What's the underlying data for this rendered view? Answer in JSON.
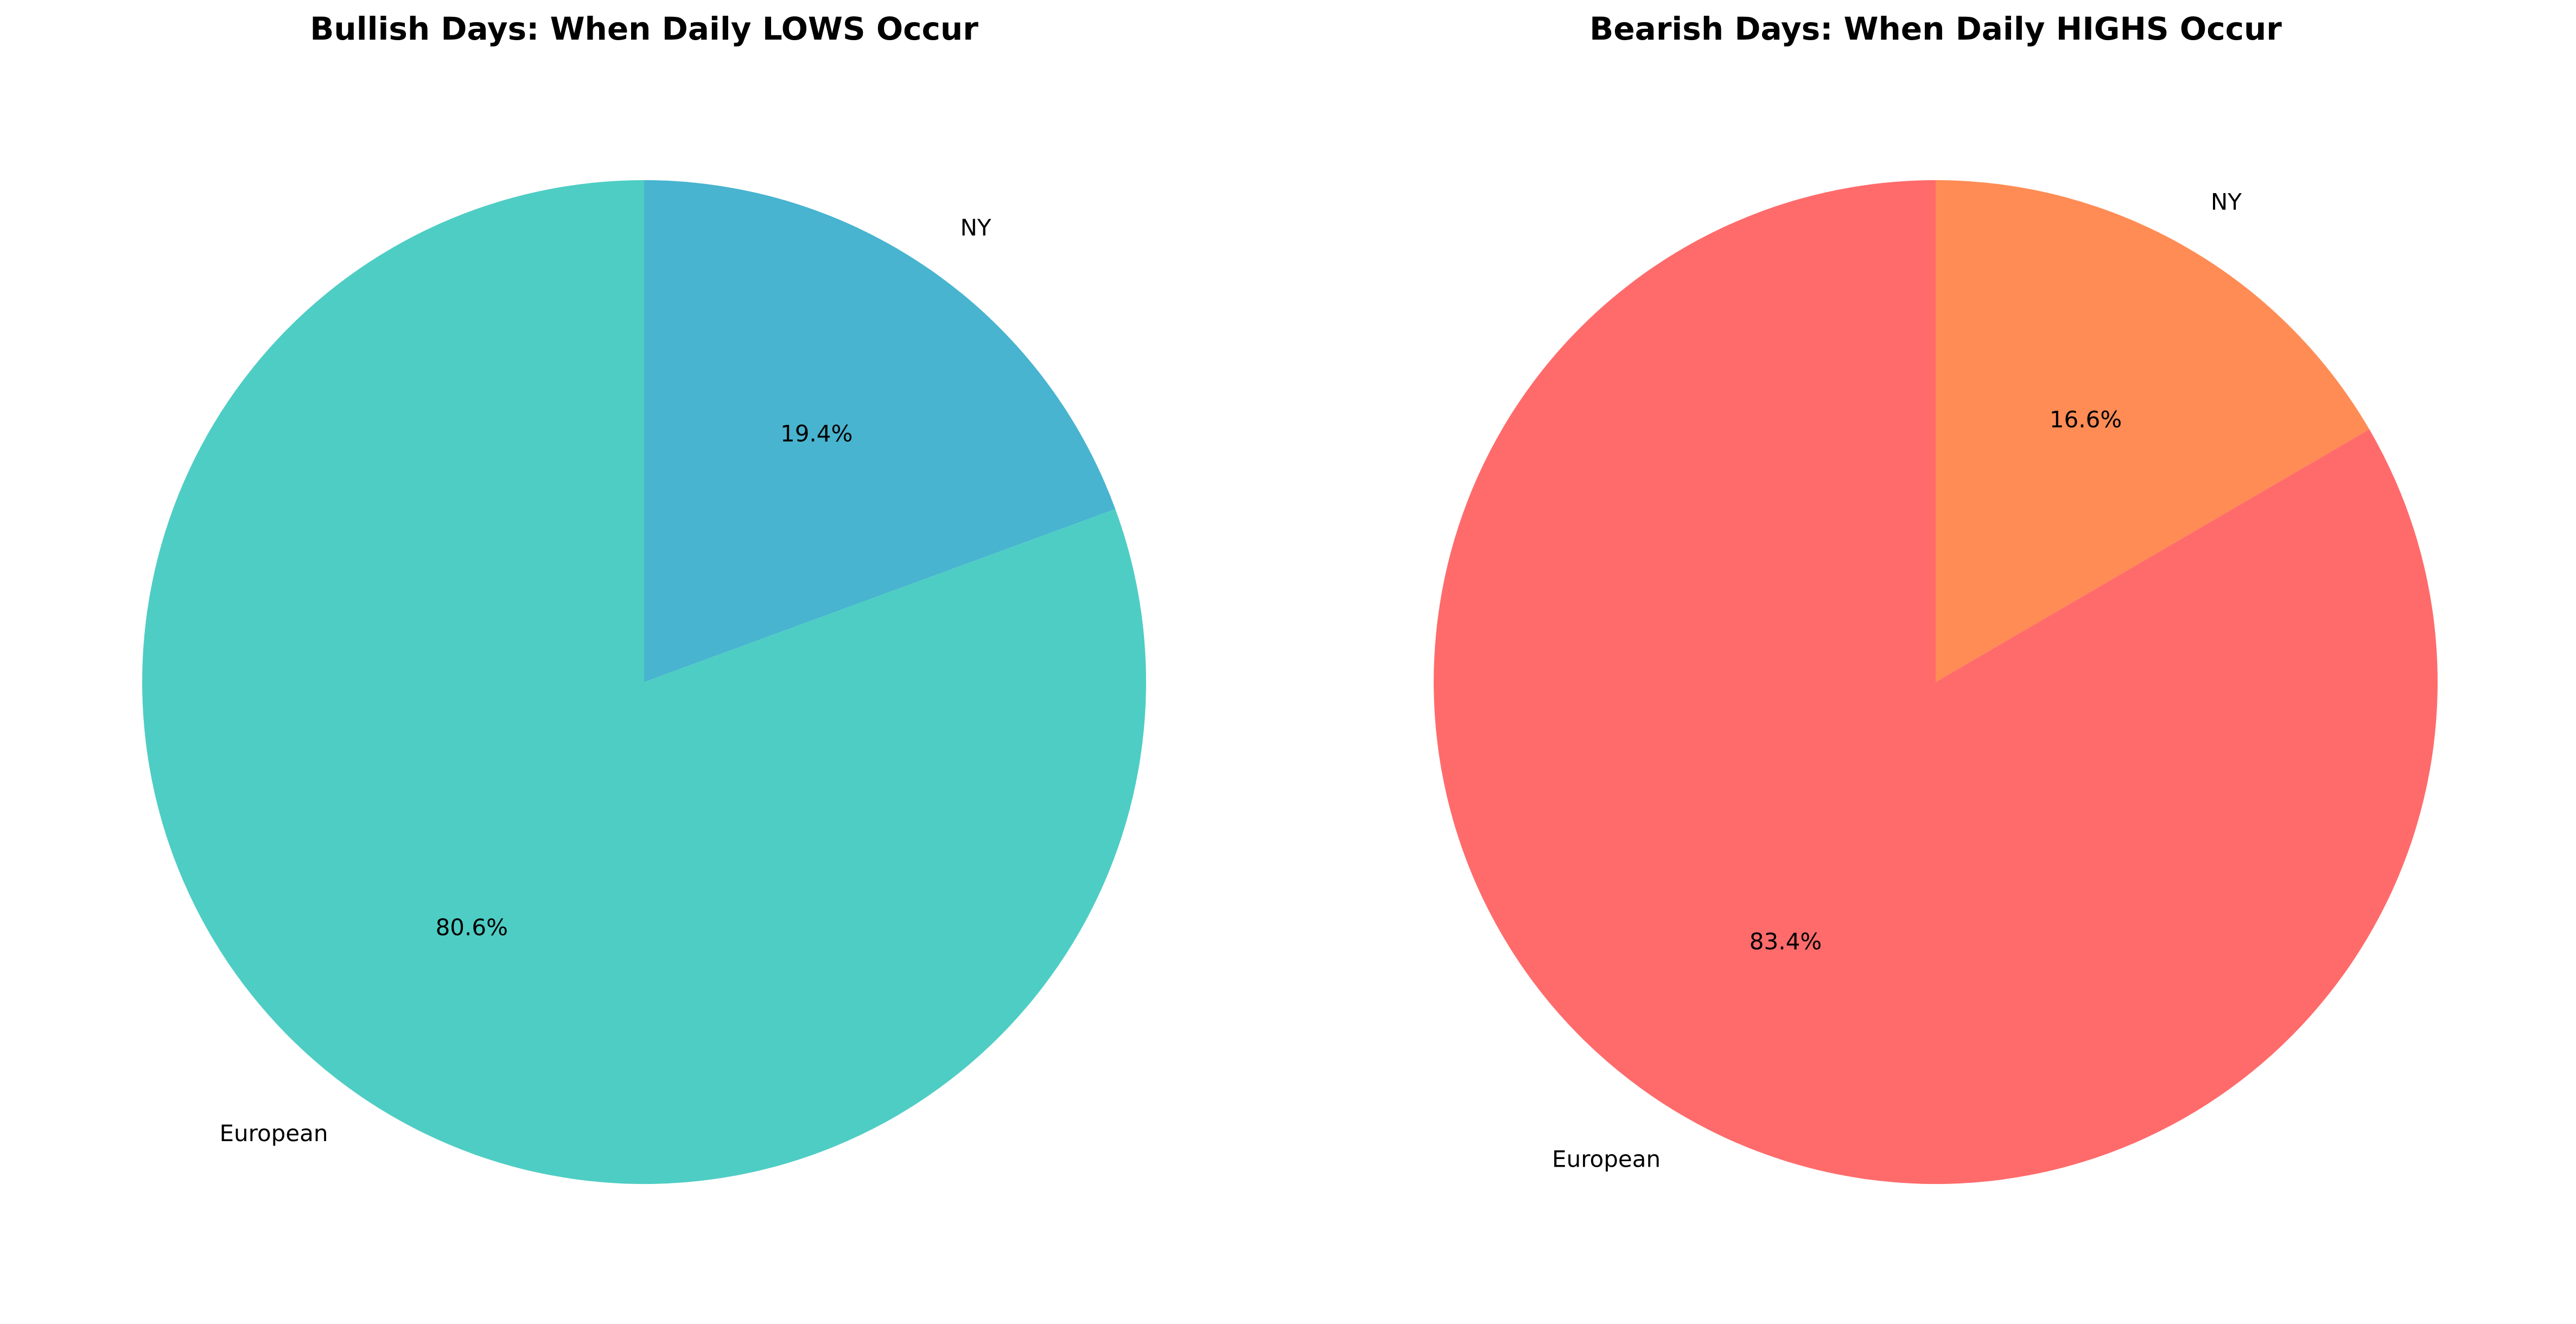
{
  "chart_data": [
    {
      "type": "pie",
      "title": "Bullish Days: When Daily LOWS Occur",
      "start_angle_deg": 90,
      "direction": "clockwise",
      "slices": [
        {
          "label": "NY",
          "value": 19.4,
          "pct_label": "19.4%",
          "color": "#48B4CF"
        },
        {
          "label": "European",
          "value": 80.6,
          "pct_label": "80.6%",
          "color": "#4ECDC4"
        }
      ]
    },
    {
      "type": "pie",
      "title": "Bearish Days: When Daily HIGHS Occur",
      "start_angle_deg": 90,
      "direction": "clockwise",
      "slices": [
        {
          "label": "NY",
          "value": 16.6,
          "pct_label": "16.6%",
          "color": "#FF8C55"
        },
        {
          "label": "European",
          "value": 83.4,
          "pct_label": "83.4%",
          "color": "#FF6B6B"
        }
      ]
    }
  ]
}
